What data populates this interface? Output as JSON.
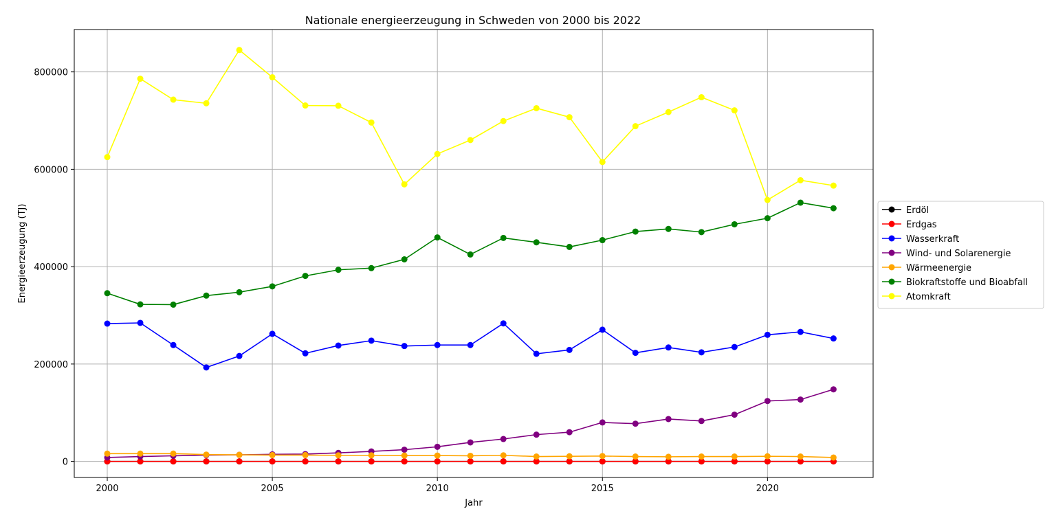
{
  "chart_data": {
    "type": "line",
    "title": "Nationale energieerzeugung in Schweden von 2000 bis 2022",
    "xlabel": "Jahr",
    "ylabel": "Energieerzeugung (TJ)",
    "xlim": [
      1999,
      2023.2
    ],
    "ylim": [
      -33000,
      887000
    ],
    "x_ticks": [
      2000,
      2005,
      2010,
      2015,
      2020
    ],
    "y_ticks": [
      0,
      200000,
      400000,
      600000,
      800000
    ],
    "grid": true,
    "legend_position": "center-right",
    "x": [
      2000,
      2001,
      2002,
      2003,
      2004,
      2005,
      2006,
      2007,
      2008,
      2009,
      2010,
      2011,
      2012,
      2013,
      2014,
      2015,
      2016,
      2017,
      2018,
      2019,
      2020,
      2021,
      2022
    ],
    "series": [
      {
        "name": "Erdöl",
        "color": "#000000",
        "values": [
          0,
          0,
          0,
          0,
          0,
          0,
          0,
          0,
          0,
          0,
          0,
          0,
          0,
          0,
          0,
          0,
          0,
          0,
          0,
          0,
          0,
          0,
          0
        ]
      },
      {
        "name": "Erdgas",
        "color": "#ff0000",
        "values": [
          0,
          0,
          0,
          0,
          0,
          0,
          0,
          0,
          0,
          0,
          0,
          0,
          0,
          0,
          0,
          0,
          0,
          0,
          0,
          0,
          0,
          0,
          0
        ]
      },
      {
        "name": "Wasserkraft",
        "color": "#0000ff",
        "values": [
          283000,
          284500,
          239000,
          193000,
          216500,
          262000,
          222000,
          238000,
          248000,
          237000,
          239000,
          239000,
          283500,
          221000,
          229000,
          270500,
          223000,
          234000,
          224000,
          235000,
          260000,
          266000,
          252500
        ]
      },
      {
        "name": "Wind- und Solarenergie",
        "color": "#800080",
        "values": [
          8000,
          10000,
          11500,
          13000,
          13500,
          14500,
          15000,
          17500,
          20500,
          24000,
          30000,
          39000,
          46000,
          55000,
          60000,
          80000,
          77500,
          87000,
          83000,
          96000,
          124000,
          127000,
          148000
        ]
      },
      {
        "name": "Wärmeenergie",
        "color": "#ffa500",
        "values": [
          16000,
          16000,
          16000,
          14000,
          13500,
          13000,
          13000,
          12500,
          12500,
          12000,
          12000,
          11500,
          12500,
          10000,
          10500,
          11000,
          10000,
          9500,
          10000,
          10000,
          10500,
          10000,
          8000
        ]
      },
      {
        "name": "Biokraftstoffe und Bioabfall",
        "color": "#008000",
        "values": [
          345500,
          322500,
          322000,
          340500,
          347500,
          359500,
          381000,
          393500,
          397000,
          415000,
          460000,
          425000,
          459000,
          450000,
          440500,
          454500,
          472000,
          477500,
          471000,
          487000,
          499500,
          531500,
          520000
        ]
      },
      {
        "name": "Atomkraft",
        "color": "#ffff00",
        "values": [
          625000,
          786000,
          743000,
          735500,
          845000,
          789000,
          731000,
          730500,
          696000,
          569000,
          631500,
          660000,
          699000,
          725500,
          707000,
          615000,
          688500,
          717500,
          748000,
          721000,
          537000,
          577500,
          566500
        ]
      }
    ]
  }
}
